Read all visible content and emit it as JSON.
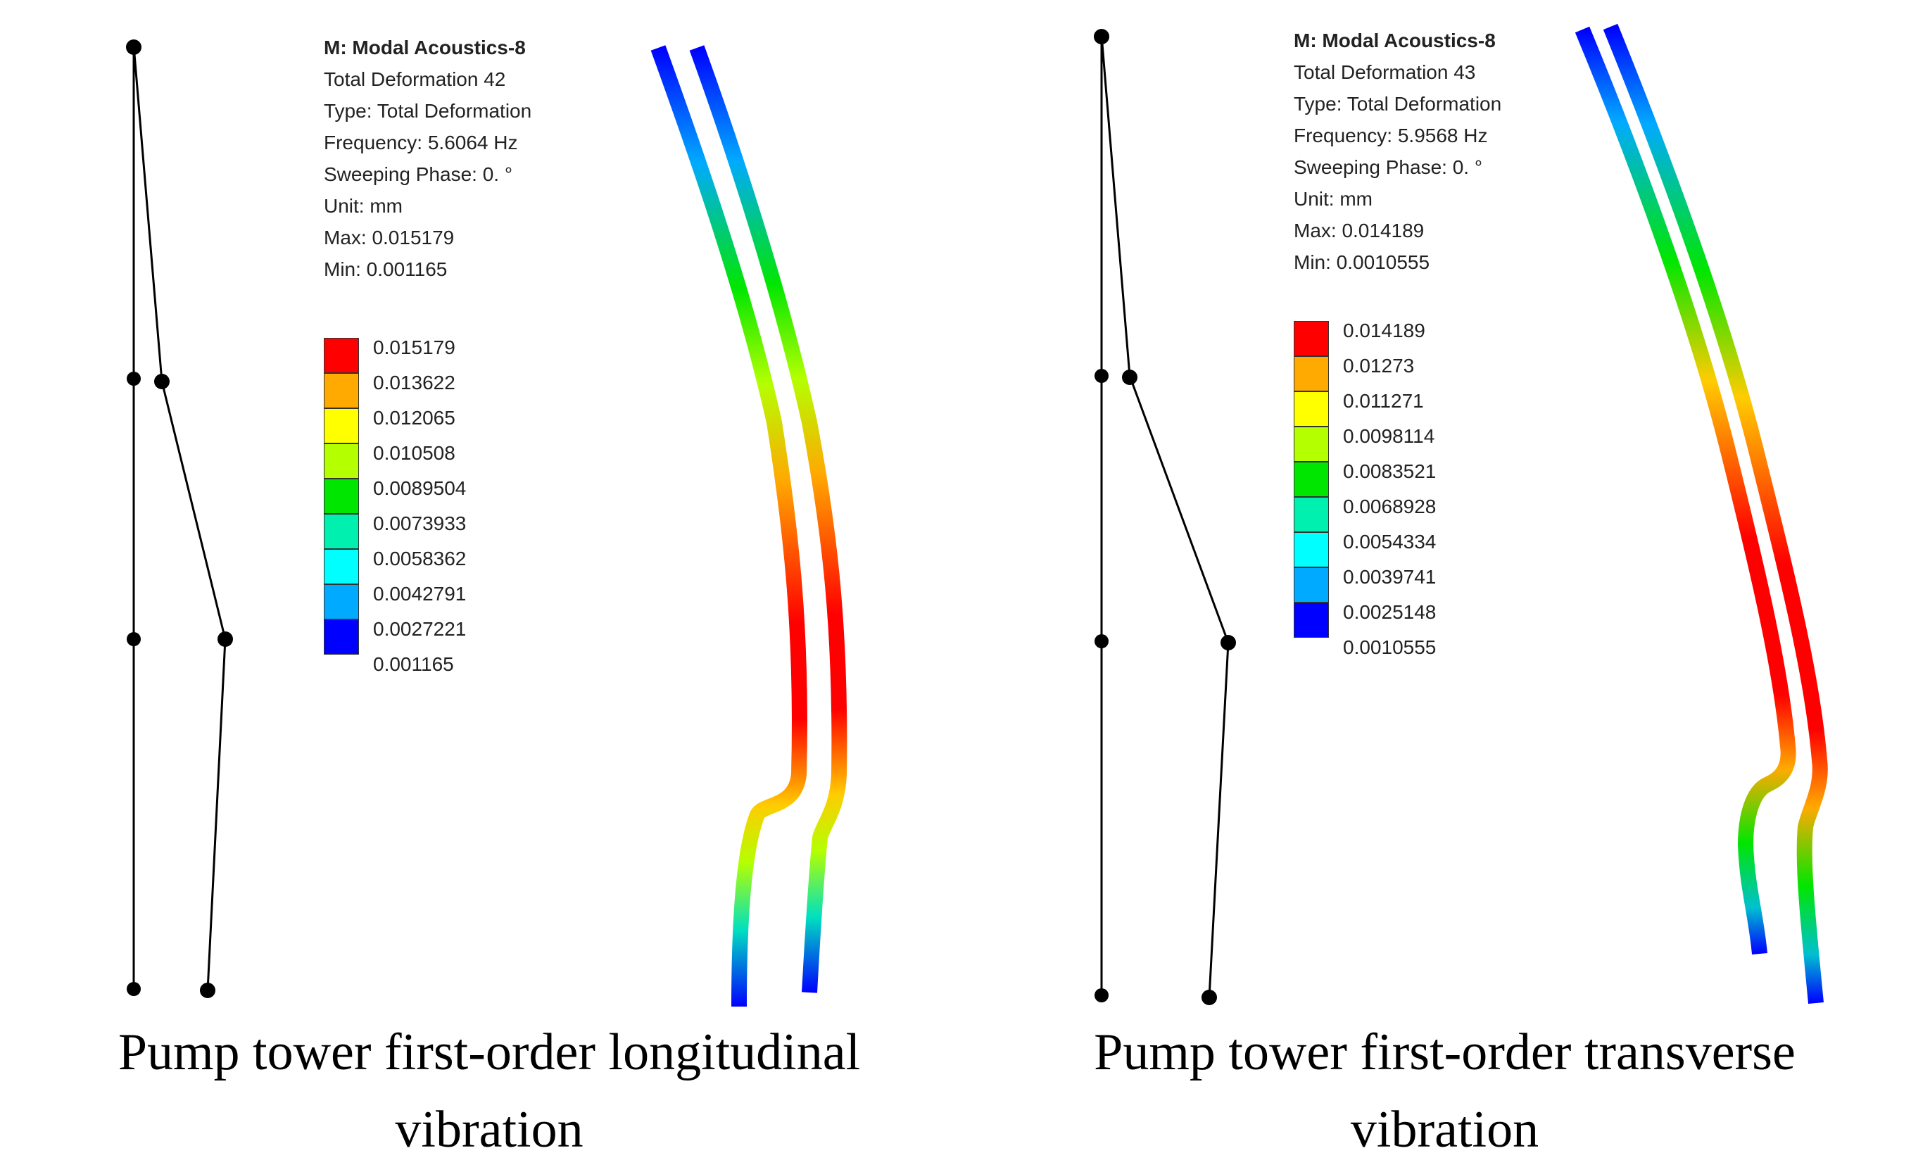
{
  "panels": [
    {
      "info": {
        "title": "M: Modal Acoustics-8",
        "lines": [
          "Total Deformation 42",
          "Type: Total Deformation",
          "Frequency: 5.6064 Hz",
          "Sweeping Phase: 0. °",
          "Unit: mm",
          "Max: 0.015179",
          "Min: 0.001165"
        ]
      },
      "legend": [
        "0.015179",
        "0.013622",
        "0.012065",
        "0.010508",
        "0.0089504",
        "0.0073933",
        "0.0058362",
        "0.0042791",
        "0.0027221",
        "0.001165"
      ],
      "caption": [
        "Pump tower first-order longitudinal",
        "vibration"
      ]
    },
    {
      "info": {
        "title": "M: Modal Acoustics-8",
        "lines": [
          "Total Deformation 43",
          "Type: Total Deformation",
          "Frequency: 5.9568 Hz",
          "Sweeping Phase: 0. °",
          "Unit: mm",
          "Max: 0.014189",
          "Min: 0.0010555"
        ]
      },
      "legend": [
        "0.014189",
        "0.01273",
        "0.011271",
        "0.0098114",
        "0.0083521",
        "0.0068928",
        "0.0054334",
        "0.0039741",
        "0.0025148",
        "0.0010555"
      ],
      "caption": [
        "Pump tower first-order transverse",
        "vibration"
      ]
    }
  ],
  "legend_colors": [
    "#ff0000",
    "#ffaa00",
    "#ffff00",
    "#b4ff00",
    "#00e600",
    "#00f0b0",
    "#00ffff",
    "#00aaff",
    "#0000ff"
  ]
}
